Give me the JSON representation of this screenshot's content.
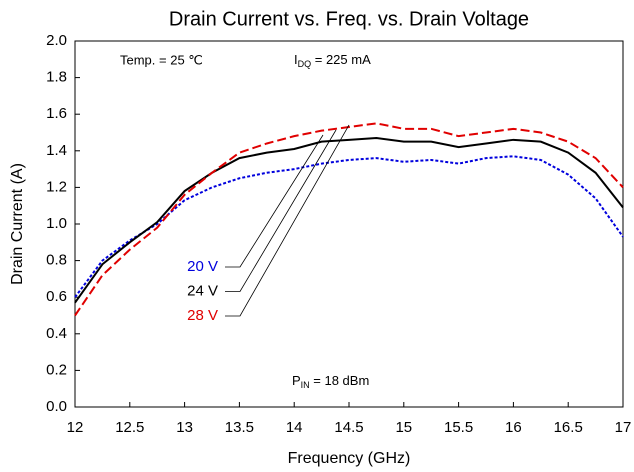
{
  "chart_data": {
    "type": "line",
    "title": "Drain Current vs. Freq. vs. Drain Voltage",
    "x_label": "Frequency (GHz)",
    "y_label": "Drain Current (A)",
    "x": [
      12,
      12.25,
      12.5,
      12.75,
      13,
      13.25,
      13.5,
      13.75,
      14,
      14.25,
      14.5,
      14.75,
      15,
      15.25,
      15.5,
      15.75,
      16,
      16.25,
      16.5,
      16.75,
      17
    ],
    "series": [
      {
        "name": "20 V",
        "color": "#0000dd",
        "dash": "3,2",
        "values": [
          0.6,
          0.8,
          0.91,
          1.0,
          1.13,
          1.2,
          1.25,
          1.28,
          1.3,
          1.33,
          1.35,
          1.36,
          1.34,
          1.35,
          1.33,
          1.36,
          1.37,
          1.35,
          1.27,
          1.14,
          0.93
        ]
      },
      {
        "name": "24 V",
        "color": "#000000",
        "dash": "",
        "values": [
          0.57,
          0.78,
          0.9,
          1.01,
          1.18,
          1.28,
          1.36,
          1.39,
          1.41,
          1.45,
          1.46,
          1.47,
          1.45,
          1.45,
          1.42,
          1.44,
          1.46,
          1.45,
          1.39,
          1.28,
          1.09
        ]
      },
      {
        "name": "28 V",
        "color": "#e00000",
        "dash": "9,4",
        "values": [
          0.5,
          0.72,
          0.86,
          0.98,
          1.16,
          1.28,
          1.39,
          1.44,
          1.48,
          1.51,
          1.53,
          1.55,
          1.52,
          1.52,
          1.48,
          1.5,
          1.52,
          1.5,
          1.45,
          1.36,
          1.2
        ]
      }
    ],
    "xlim": [
      12,
      17
    ],
    "ylim": [
      0,
      2
    ],
    "xticks": [
      12,
      12.5,
      13,
      13.5,
      14,
      14.5,
      15,
      15.5,
      16,
      16.5,
      17
    ],
    "yticks": [
      {
        "value": 0,
        "label": "0.0"
      },
      {
        "value": 0.2,
        "label": "0.2"
      },
      {
        "value": 0.4,
        "label": "0.4"
      },
      {
        "value": 0.6,
        "label": "0.6"
      },
      {
        "value": 0.8,
        "label": "0.8"
      },
      {
        "value": 1.0,
        "label": "1.0"
      },
      {
        "value": 1.2,
        "label": "1.2"
      },
      {
        "value": 1.4,
        "label": "1.4"
      },
      {
        "value": 1.6,
        "label": "1.6"
      },
      {
        "value": 1.8,
        "label": "1.8"
      },
      {
        "value": 2.0,
        "label": "2.0"
      }
    ],
    "grid": false,
    "annotations": {
      "temp": "Temp. = 25 ℃",
      "idq": {
        "main": "I",
        "sub": "DQ",
        "rest": " = 225 mA"
      },
      "pin": {
        "main": "P",
        "sub": "IN",
        "rest": " = 18 dBm"
      }
    }
  }
}
